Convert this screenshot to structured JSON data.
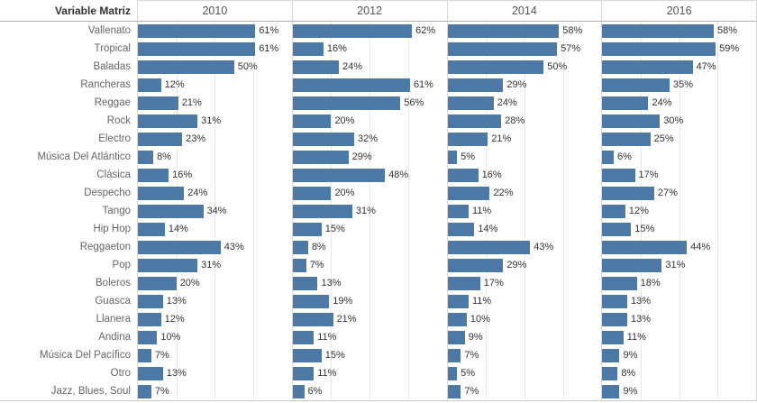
{
  "header": {
    "row_field_label": "Variable Matriz"
  },
  "colors": {
    "bar": "#4d79a7",
    "gridline": "#e9e9e9",
    "separator": "#d8d8d8",
    "header_rule": "#b2b2b2",
    "row_label_text": "#666666",
    "value_text": "#333333"
  },
  "chart_data": {
    "type": "bar",
    "orientation": "horizontal",
    "title": "",
    "xlabel": "",
    "ylabel": "Variable Matriz",
    "value_suffix": "%",
    "xlim": [
      0,
      80
    ],
    "gridlines_pct": [
      20,
      40,
      60
    ],
    "legend": "none",
    "grid": "on",
    "categories": [
      "Vallenato",
      "Tropical",
      "Baladas",
      "Rancheras",
      "Reggae",
      "Rock",
      "Electro",
      "Música Del Atlántico",
      "Clásica",
      "Despecho",
      "Tango",
      "Hip Hop",
      "Reggaeton",
      "Pop",
      "Boleros",
      "Guasca",
      "Llanera",
      "Andina",
      "Música Del Pacífico",
      "Otro",
      "Jazz, Blues, Soul"
    ],
    "series": [
      {
        "name": "2010",
        "values": [
          61,
          61,
          50,
          12,
          21,
          31,
          23,
          8,
          16,
          24,
          34,
          14,
          43,
          31,
          20,
          13,
          12,
          10,
          7,
          13,
          7
        ]
      },
      {
        "name": "2012",
        "values": [
          62,
          16,
          24,
          61,
          56,
          20,
          32,
          29,
          48,
          20,
          31,
          15,
          8,
          7,
          13,
          19,
          21,
          11,
          15,
          11,
          6
        ]
      },
      {
        "name": "2014",
        "values": [
          58,
          57,
          50,
          29,
          24,
          28,
          21,
          5,
          16,
          22,
          11,
          14,
          43,
          29,
          17,
          11,
          10,
          9,
          7,
          5,
          7
        ]
      },
      {
        "name": "2016",
        "values": [
          58,
          59,
          47,
          35,
          24,
          30,
          25,
          6,
          17,
          27,
          12,
          15,
          44,
          31,
          18,
          13,
          13,
          11,
          9,
          8,
          9
        ]
      }
    ]
  }
}
